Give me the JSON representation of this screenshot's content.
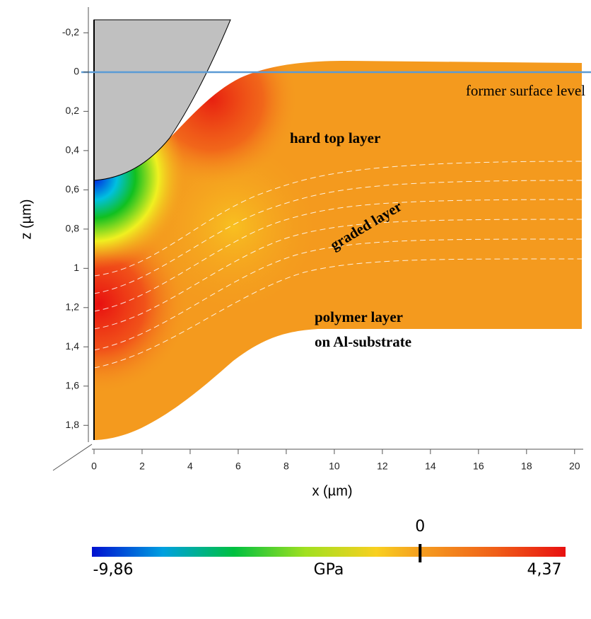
{
  "chart_data": {
    "type": "field",
    "xlabel": "x (µm)",
    "ylabel": "z (µm)",
    "xlim": [
      0,
      20.3
    ],
    "ylim": [
      -0.27,
      1.9
    ],
    "y_inverted": true,
    "xticks": [
      0,
      2,
      4,
      6,
      8,
      10,
      12,
      14,
      16,
      18,
      20
    ],
    "yticks": [
      {
        "value": -0.2,
        "label": "-0,2"
      },
      0,
      {
        "value": 0.2,
        "label": "0,2"
      },
      {
        "value": 0.4,
        "label": "0,4"
      },
      {
        "value": 0.6,
        "label": "0,6"
      },
      {
        "value": 0.8,
        "label": "0,8"
      },
      1,
      {
        "value": 1.2,
        "label": "1,2"
      },
      {
        "value": 1.4,
        "label": "1,4"
      },
      {
        "value": 1.6,
        "label": "1,6"
      },
      {
        "value": 1.8,
        "label": "1,8"
      }
    ],
    "annotations": [
      "former surface level",
      "hard top layer",
      "graded layer",
      "polymer layer",
      "on Al-substrate"
    ],
    "colorbar": {
      "unit": "GPa",
      "min": {
        "value": -9.86,
        "label": "-9,86"
      },
      "max": {
        "value": 4.37,
        "label": "4,37"
      },
      "ticks": [
        0
      ]
    }
  }
}
